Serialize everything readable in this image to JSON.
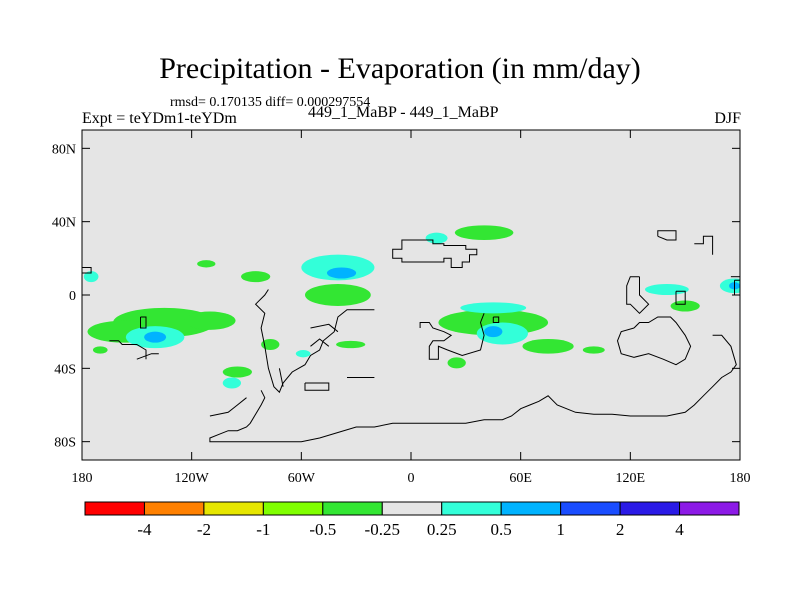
{
  "chart_data": {
    "type": "heatmap",
    "title": "Precipitation - Evaporation (in mm/day)",
    "subtitle": "rmsd= 0.170135  diff= 0.000297554",
    "left_label": "Expt = teYDm1-teYDm",
    "center_label": "449_1_MaBP - 449_1_MaBP",
    "right_label": "DJF",
    "xlim": [
      -180,
      180
    ],
    "ylim": [
      -90,
      90
    ],
    "x_ticks": [
      -180,
      -120,
      -60,
      0,
      60,
      120,
      180
    ],
    "x_tick_labels": [
      "180",
      "120W",
      "60W",
      "0",
      "60E",
      "120E",
      "180"
    ],
    "y_ticks": [
      80,
      40,
      0,
      -40,
      -80
    ],
    "y_tick_labels": [
      "80N",
      "40N",
      "0",
      "40S",
      "80S"
    ],
    "background_color": "#e5e5e5",
    "colorbar": {
      "colors": [
        "#ff0000",
        "#ff8000",
        "#e6e600",
        "#80ff00",
        "#33e633",
        "#e5e5e5",
        "#33ffd9",
        "#00b3ff",
        "#1a4dff",
        "#2a1ae6",
        "#8c1ae6"
      ],
      "labels": [
        "-4",
        "-2",
        "-1",
        "-0.5",
        "-0.25",
        "0.25",
        "0.5",
        "1",
        "2",
        "4"
      ]
    },
    "regions": [
      {
        "level": "-0.5..-0.25",
        "color": "#33e633",
        "lon": -135,
        "lat": -15,
        "rlon": 28,
        "rlat": 8
      },
      {
        "level": "-0.5..-0.25",
        "color": "#33e633",
        "lon": -110,
        "lat": -14,
        "rlon": 14,
        "rlat": 5
      },
      {
        "level": "-0.5..-0.25",
        "color": "#33e633",
        "lon": -40,
        "lat": 0,
        "rlon": 18,
        "rlat": 6
      },
      {
        "level": "-0.5..-0.25",
        "color": "#33e633",
        "lon": 45,
        "lat": -15,
        "rlon": 30,
        "rlat": 7
      },
      {
        "level": "-0.5..-0.25",
        "color": "#33e633",
        "lon": 75,
        "lat": -28,
        "rlon": 14,
        "rlat": 4
      },
      {
        "level": "-0.5..-0.25",
        "color": "#33e633",
        "lon": 40,
        "lat": 34,
        "rlon": 16,
        "rlat": 4
      },
      {
        "level": "-0.5..-0.25",
        "color": "#33e633",
        "lon": -157,
        "lat": -20,
        "rlon": 20,
        "rlat": 6
      },
      {
        "level": "-0.5..-0.25",
        "color": "#33e633",
        "lon": -112,
        "lat": 17,
        "rlon": 5,
        "rlat": 2
      },
      {
        "level": "-0.5..-0.25",
        "color": "#33e633",
        "lon": -85,
        "lat": 10,
        "rlon": 8,
        "rlat": 3
      },
      {
        "level": "-0.5..-0.25",
        "color": "#33e633",
        "lon": -77,
        "lat": -27,
        "rlon": 5,
        "rlat": 3
      },
      {
        "level": "-0.5..-0.25",
        "color": "#33e633",
        "lon": -95,
        "lat": -42,
        "rlon": 8,
        "rlat": 3
      },
      {
        "level": "-0.5..-0.25",
        "color": "#33e633",
        "lon": 25,
        "lat": -37,
        "rlon": 5,
        "rlat": 3
      },
      {
        "level": "-0.5..-0.25",
        "color": "#33e633",
        "lon": 150,
        "lat": -6,
        "rlon": 8,
        "rlat": 3
      },
      {
        "level": "-0.5..-0.25",
        "color": "#33e633",
        "lon": 100,
        "lat": -30,
        "rlon": 6,
        "rlat": 2
      },
      {
        "level": "-0.5..-0.25",
        "color": "#33e633",
        "lon": -33,
        "lat": -27,
        "rlon": 8,
        "rlat": 2
      },
      {
        "level": "-0.5..-0.25",
        "color": "#33e633",
        "lon": -170,
        "lat": -30,
        "rlon": 4,
        "rlat": 2
      },
      {
        "level": "0.25..0.5",
        "color": "#33ffd9",
        "lon": -40,
        "lat": 15,
        "rlon": 20,
        "rlat": 7
      },
      {
        "level": "0.25..0.5",
        "color": "#33ffd9",
        "lon": -140,
        "lat": -23,
        "rlon": 16,
        "rlat": 6
      },
      {
        "level": "0.25..0.5",
        "color": "#33ffd9",
        "lon": 50,
        "lat": -21,
        "rlon": 14,
        "rlat": 6
      },
      {
        "level": "0.25..0.5",
        "color": "#33ffd9",
        "lon": 45,
        "lat": -7,
        "rlon": 18,
        "rlat": 3
      },
      {
        "level": "0.25..0.5",
        "color": "#33ffd9",
        "lon": 140,
        "lat": 3,
        "rlon": 12,
        "rlat": 3
      },
      {
        "level": "0.25..0.5",
        "color": "#33ffd9",
        "lon": 177,
        "lat": 5,
        "rlon": 8,
        "rlat": 4
      },
      {
        "level": "0.25..0.5",
        "color": "#33ffd9",
        "lon": -98,
        "lat": -48,
        "rlon": 5,
        "rlat": 3
      },
      {
        "level": "0.25..0.5",
        "color": "#33ffd9",
        "lon": -175,
        "lat": 10,
        "rlon": 4,
        "rlat": 3
      },
      {
        "level": "0.25..0.5",
        "color": "#33ffd9",
        "lon": 14,
        "lat": 31,
        "rlon": 6,
        "rlat": 3
      },
      {
        "level": "0.25..0.5",
        "color": "#33ffd9",
        "lon": -59,
        "lat": -32,
        "rlon": 4,
        "rlat": 2
      },
      {
        "level": "0.5..1",
        "color": "#00b3ff",
        "lon": -38,
        "lat": 12,
        "rlon": 8,
        "rlat": 3
      },
      {
        "level": "0.5..1",
        "color": "#00b3ff",
        "lon": -140,
        "lat": -23,
        "rlon": 6,
        "rlat": 3
      },
      {
        "level": "0.5..1",
        "color": "#00b3ff",
        "lon": 45,
        "lat": -20,
        "rlon": 5,
        "rlat": 3
      },
      {
        "level": "0.5..1",
        "color": "#00b3ff",
        "lon": 177,
        "lat": 5,
        "rlon": 3,
        "rlat": 2
      }
    ],
    "coastlines": [
      [
        [
          5,
          30
        ],
        [
          12,
          30
        ],
        [
          12,
          28
        ],
        [
          18,
          28
        ],
        [
          18,
          27
        ],
        [
          30,
          27
        ],
        [
          30,
          25
        ],
        [
          36,
          25
        ],
        [
          36,
          22
        ],
        [
          32,
          22
        ],
        [
          32,
          18
        ],
        [
          28,
          18
        ],
        [
          28,
          15
        ],
        [
          22,
          15
        ],
        [
          22,
          20
        ],
        [
          18,
          20
        ],
        [
          18,
          18
        ],
        [
          0,
          18
        ],
        [
          -5,
          18
        ],
        [
          -5,
          20
        ],
        [
          -10,
          20
        ],
        [
          -10,
          25
        ],
        [
          -5,
          25
        ],
        [
          -5,
          30
        ],
        [
          5,
          30
        ]
      ],
      [
        [
          -20,
          -8
        ],
        [
          -35,
          -8
        ],
        [
          -40,
          -12
        ],
        [
          -42,
          -20
        ],
        [
          -48,
          -25
        ],
        [
          -50,
          -30
        ],
        [
          -55,
          -33
        ],
        [
          -58,
          -38
        ],
        [
          -65,
          -42
        ],
        [
          -70,
          -48
        ],
        [
          -72,
          -53
        ],
        [
          -75,
          -50
        ],
        [
          -78,
          -40
        ],
        [
          -80,
          -28
        ],
        [
          -82,
          -18
        ],
        [
          -80,
          -10
        ],
        [
          -85,
          -5
        ],
        [
          -80,
          0
        ],
        [
          -78,
          3
        ]
      ],
      [
        [
          5,
          -18
        ],
        [
          5,
          -15
        ],
        [
          10,
          -15
        ],
        [
          12,
          -18
        ],
        [
          18,
          -20
        ],
        [
          22,
          -22
        ],
        [
          18,
          -25
        ],
        [
          12,
          -25
        ],
        [
          10,
          -28
        ],
        [
          10,
          -35
        ],
        [
          15,
          -35
        ],
        [
          15,
          -28
        ],
        [
          20,
          -30
        ],
        [
          28,
          -33
        ],
        [
          38,
          -30
        ],
        [
          40,
          -22
        ],
        [
          38,
          -15
        ],
        [
          40,
          -10
        ]
      ],
      [
        [
          122,
          -18
        ],
        [
          115,
          -20
        ],
        [
          113,
          -25
        ],
        [
          115,
          -32
        ],
        [
          122,
          -34
        ],
        [
          130,
          -32
        ],
        [
          138,
          -35
        ],
        [
          145,
          -38
        ],
        [
          150,
          -35
        ],
        [
          153,
          -28
        ],
        [
          150,
          -22
        ],
        [
          145,
          -15
        ],
        [
          142,
          -12
        ],
        [
          135,
          -12
        ],
        [
          130,
          -15
        ],
        [
          125,
          -15
        ],
        [
          122,
          -18
        ]
      ],
      [
        [
          165,
          -22
        ],
        [
          170,
          -22
        ],
        [
          175,
          -28
        ],
        [
          178,
          -38
        ],
        [
          175,
          -42
        ],
        [
          170,
          -45
        ],
        [
          165,
          -50
        ],
        [
          160,
          -55
        ],
        [
          155,
          -60
        ],
        [
          150,
          -64
        ],
        [
          140,
          -66
        ],
        [
          130,
          -66
        ],
        [
          120,
          -66
        ],
        [
          110,
          -65
        ],
        [
          100,
          -65
        ],
        [
          90,
          -64
        ],
        [
          80,
          -60
        ],
        [
          75,
          -55
        ],
        [
          70,
          -58
        ],
        [
          65,
          -60
        ],
        [
          60,
          -62
        ],
        [
          55,
          -66
        ],
        [
          50,
          -68
        ],
        [
          40,
          -68
        ],
        [
          30,
          -70
        ],
        [
          20,
          -70
        ],
        [
          10,
          -70
        ],
        [
          0,
          -70
        ],
        [
          -10,
          -70
        ],
        [
          -20,
          -72
        ],
        [
          -30,
          -72
        ],
        [
          -40,
          -75
        ],
        [
          -50,
          -78
        ],
        [
          -60,
          -80
        ],
        [
          -70,
          -80
        ],
        [
          -80,
          -80
        ],
        [
          -90,
          -80
        ],
        [
          -100,
          -80
        ],
        [
          -110,
          -80
        ],
        [
          -110,
          -78
        ],
        [
          -105,
          -76
        ],
        [
          -100,
          -74
        ],
        [
          -95,
          -74
        ],
        [
          -90,
          -72
        ],
        [
          -88,
          -70
        ],
        [
          -85,
          -65
        ],
        [
          -82,
          -60
        ],
        [
          -80,
          -56
        ],
        [
          -82,
          -52
        ]
      ],
      [
        [
          -180,
          12
        ],
        [
          -175,
          12
        ],
        [
          -175,
          15
        ],
        [
          -180,
          15
        ]
      ],
      [
        [
          -148,
          -12
        ],
        [
          -145,
          -12
        ],
        [
          -145,
          -18
        ],
        [
          -148,
          -18
        ],
        [
          -148,
          -12
        ]
      ],
      [
        [
          -165,
          -25
        ],
        [
          -160,
          -25
        ],
        [
          -158,
          -27
        ],
        [
          -150,
          -27
        ],
        [
          -145,
          -30
        ],
        [
          -145,
          -35
        ]
      ],
      [
        [
          -150,
          -35
        ],
        [
          -142,
          -32
        ],
        [
          -138,
          -32
        ]
      ],
      [
        [
          -110,
          -66
        ],
        [
          -100,
          -64
        ],
        [
          -95,
          -60
        ],
        [
          -90,
          -56
        ]
      ],
      [
        [
          -72,
          -40
        ],
        [
          -70,
          -50
        ]
      ],
      [
        [
          -58,
          -48
        ],
        [
          -45,
          -48
        ],
        [
          -45,
          -52
        ],
        [
          -58,
          -52
        ],
        [
          -58,
          -48
        ]
      ],
      [
        [
          -35,
          -45
        ],
        [
          -20,
          -45
        ]
      ],
      [
        [
          -55,
          -18
        ],
        [
          -45,
          -16
        ],
        [
          -40,
          -20
        ]
      ],
      [
        [
          -55,
          -28
        ],
        [
          -50,
          -24
        ],
        [
          -45,
          -28
        ]
      ],
      [
        [
          45,
          -12
        ],
        [
          48,
          -12
        ],
        [
          48,
          -15
        ],
        [
          45,
          -15
        ],
        [
          45,
          -12
        ]
      ],
      [
        [
          135,
          32
        ],
        [
          140,
          30
        ],
        [
          145,
          30
        ],
        [
          145,
          35
        ],
        [
          140,
          35
        ],
        [
          135,
          35
        ],
        [
          135,
          32
        ]
      ],
      [
        [
          155,
          28
        ],
        [
          160,
          28
        ],
        [
          160,
          32
        ],
        [
          165,
          32
        ],
        [
          165,
          22
        ]
      ],
      [
        [
          175,
          10
        ],
        [
          180,
          10
        ]
      ],
      [
        [
          125,
          10
        ],
        [
          120,
          10
        ],
        [
          118,
          5
        ],
        [
          118,
          -5
        ],
        [
          120,
          -5
        ],
        [
          125,
          -10
        ],
        [
          130,
          -5
        ],
        [
          125,
          0
        ],
        [
          125,
          10
        ]
      ],
      [
        [
          145,
          2
        ],
        [
          150,
          2
        ],
        [
          150,
          -5
        ],
        [
          145,
          -5
        ],
        [
          145,
          2
        ]
      ],
      [
        [
          177,
          8
        ],
        [
          180,
          8
        ],
        [
          180,
          0
        ],
        [
          177,
          0
        ],
        [
          177,
          8
        ]
      ]
    ]
  }
}
